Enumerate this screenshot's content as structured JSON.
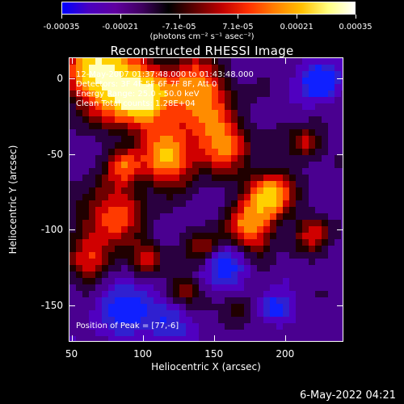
{
  "colorbar": {
    "ticks": [
      "-0.00035",
      "-0.00021",
      "-7.1e-05",
      "7.1e-05",
      "0.00021",
      "0.00035"
    ],
    "units": "(photons cm⁻² s⁻¹ asec⁻²)",
    "colors": [
      "#0000ff",
      "#4a00c0",
      "#6000a0",
      "#400060",
      "#000000",
      "#600000",
      "#c00000",
      "#ff3000",
      "#ff8000",
      "#ffc000",
      "#ffff80",
      "#ffffff"
    ]
  },
  "title": "Reconstructed RHESSI Image",
  "overlay": {
    "time_range": "12-May-2007 01:37:48.000 to 01:43:48.000",
    "detectors": "Detectors: 3F 4F 5F 6F 7F 8F, Att 0",
    "energy": "Energy Range: 25.0 - 50.0 keV",
    "clean": "Clean    Total counts: 1.28E+04",
    "peak": "Position of Peak = [77,-6]"
  },
  "axes": {
    "x_label": "Heliocentric X (arcsec)",
    "y_label": "Heliocentric Y (arcsec)",
    "x_ticks": [
      "50",
      "100",
      "150",
      "200"
    ],
    "y_ticks": [
      "0",
      "-50",
      "-100",
      "-150"
    ],
    "x_range": [
      48,
      241
    ],
    "y_range": [
      -174,
      14
    ]
  },
  "timestamp": "6-May-2022 04:21"
}
